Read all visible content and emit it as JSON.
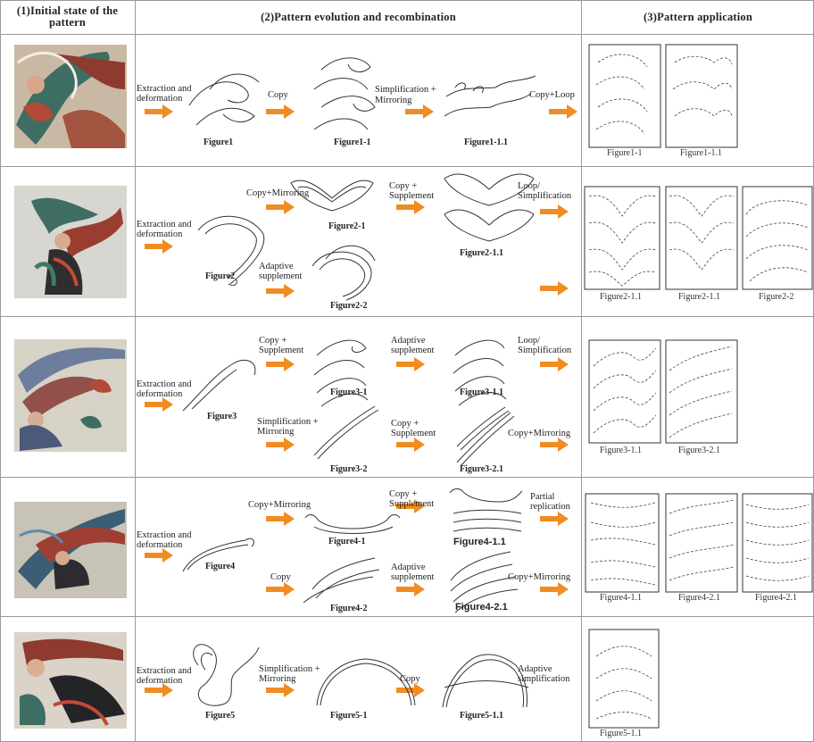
{
  "headers": {
    "col1": "(1)Initial state of the pattern",
    "col2": "(2)Pattern evolution and recombination",
    "col3": "(3)Pattern application"
  },
  "rows": [
    {
      "extract": "Extraction and deformation",
      "ops": [
        "Copy",
        "Simplification + Mirroring",
        "Copy+Loop"
      ],
      "figs": [
        "Figure1",
        "Figure1-1",
        "Figure1-1.1"
      ],
      "apps": [
        "Figure1-1",
        "Figure1-1.1"
      ]
    },
    {
      "extract": "Extraction and deformation",
      "ops": [
        "Copy+Mirroring",
        "Copy + Supplement",
        "Loop/ Simplification",
        "Adaptive supplement"
      ],
      "figs": [
        "Figure2",
        "Figure2-1",
        "Figure2-1.1",
        "Figure2-2"
      ],
      "apps": [
        "Figure2-1.1",
        "Figure2-1.1",
        "Figure2-2"
      ]
    },
    {
      "extract": "Extraction and deformation",
      "ops": [
        "Copy + Supplement",
        "Adaptive supplement",
        "Loop/ Simplification",
        "Simplification + Mirroring",
        "Copy + Supplement",
        "Copy+Mirroring"
      ],
      "figs": [
        "Figure3",
        "Figure3-1",
        "Figure3-1.1",
        "Figure3-2",
        "Figure3-2.1"
      ],
      "apps": [
        "Figure3-1.1",
        "Figure3-2.1"
      ]
    },
    {
      "extract": "Extraction and deformation",
      "ops": [
        "Copy+Mirroring",
        "Copy + Supplement",
        "Partial replication",
        "Copy",
        "Adaptive supplement",
        "Copy+Mirroring"
      ],
      "figs": [
        "Figure4",
        "Figure4-1",
        "Figure4-1.1",
        "Figure4-2",
        "Figure4-2.1"
      ],
      "apps": [
        "Figure4-1.1",
        "Figure4-2.1",
        "Figure4-2.1"
      ]
    },
    {
      "extract": "Extraction and deformation",
      "ops": [
        "Simplification + Mirroring",
        "Copy",
        "Adaptive simplification"
      ],
      "figs": [
        "Figure5",
        "Figure5-1",
        "Figure5-1.1"
      ],
      "apps": [
        "Figure5-1.1"
      ]
    }
  ],
  "colors": {
    "arrow": "#f08c22",
    "grid": "#9a9a9a",
    "ink": "#222222"
  }
}
